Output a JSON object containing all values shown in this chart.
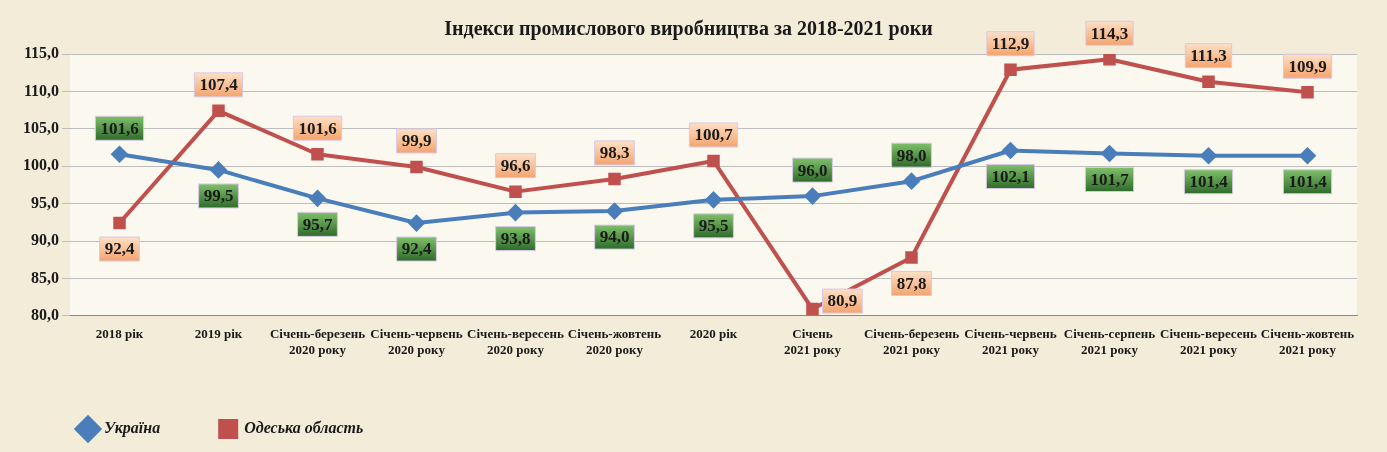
{
  "chart_data": {
    "type": "line",
    "title": "Індекси промислового виробництва за 2018-2021 роки",
    "categories": [
      "2018 рік",
      "2019 рік",
      "Січень-березень\n2020 року",
      "Січень-червень\n2020 року",
      "Січень-вересень\n2020 року",
      "Січень-жовтень\n2020 року",
      "2020 рік",
      "Січень\n2021 року",
      "Січень-березень\n2021 року",
      "Січень-червень\n2021 року",
      "Січень-серпень\n2021 року",
      "Січень-вересень\n2021 року",
      "Січень-жовтень\n2021 року"
    ],
    "series": [
      {
        "name": "Україна",
        "color": "#4a7ebb",
        "marker": "diamond",
        "values": [
          101.6,
          99.5,
          95.7,
          92.4,
          93.8,
          94.0,
          95.5,
          96.0,
          98.0,
          102.1,
          101.7,
          101.4,
          101.4
        ],
        "value_labels": [
          "101,6",
          "99,5",
          "95,7",
          "92,4",
          "93,8",
          "94,0",
          "95,5",
          "96,0",
          "98,0",
          "102,1",
          "101,7",
          "101,4",
          "101,4"
        ]
      },
      {
        "name": "Одеська область",
        "color": "#c0504d",
        "marker": "square",
        "values": [
          92.4,
          107.4,
          101.6,
          99.9,
          96.6,
          98.3,
          100.7,
          80.9,
          87.8,
          112.9,
          114.3,
          111.3,
          109.9
        ],
        "value_labels": [
          "92,4",
          "107,4",
          "101,6",
          "99,9",
          "96,6",
          "98,3",
          "100,7",
          "80,9",
          "87,8",
          "112,9",
          "114,3",
          "111,3",
          "109,9"
        ]
      }
    ],
    "ylim": [
      80,
      115
    ],
    "yticks": [
      {
        "value": 80,
        "label": "80,0"
      },
      {
        "value": 85,
        "label": "85,0"
      },
      {
        "value": 90,
        "label": "90,0"
      },
      {
        "value": 95,
        "label": "95,0"
      },
      {
        "value": 100,
        "label": "100,0"
      },
      {
        "value": 105,
        "label": "105,0"
      },
      {
        "value": 110,
        "label": "110,0"
      },
      {
        "value": 115,
        "label": "115,0"
      }
    ],
    "grid": "y",
    "legend": "bottom left",
    "line_style": "solid"
  }
}
